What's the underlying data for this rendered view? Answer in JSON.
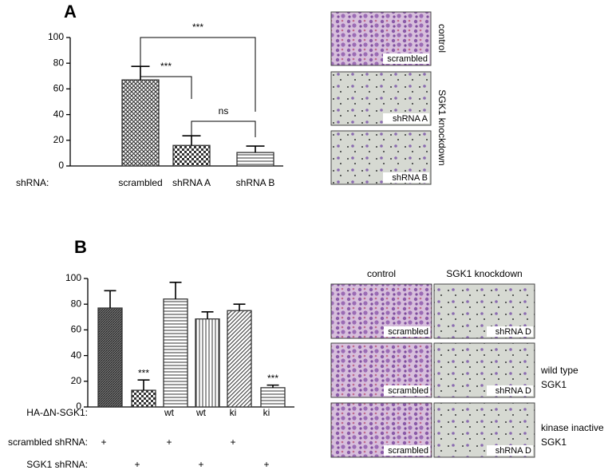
{
  "chart_data": [
    {
      "type": "bar",
      "panel": "A",
      "x_label": "shRNA:",
      "categories": [
        "scrambled",
        "shRNA A",
        "shRNA B"
      ],
      "values": [
        67,
        16,
        10.5
      ],
      "errors": [
        10.5,
        7.5,
        5
      ],
      "patterns": [
        "crosshatch",
        "checker",
        "horizontal"
      ],
      "color": "#333333",
      "ylim": [
        0,
        100
      ],
      "yticks": [
        0,
        20,
        40,
        60,
        80,
        100
      ],
      "significance": [
        "***",
        "***",
        "ns"
      ]
    },
    {
      "type": "bar",
      "panel": "B",
      "values": [
        77,
        13,
        84,
        68.5,
        75,
        15
      ],
      "errors": [
        13.5,
        8,
        13,
        5.5,
        5,
        2
      ],
      "patterns": [
        "diagonal-dense",
        "checker",
        "horizontal",
        "vertical",
        "diagonal",
        "horizontal"
      ],
      "color": "#333333",
      "annotations": [
        null,
        "***",
        null,
        null,
        null,
        "***"
      ],
      "ylim": [
        0,
        100
      ],
      "yticks": [
        0,
        20,
        40,
        60,
        80,
        100
      ],
      "condition_rows": [
        {
          "label": "HA-ΔN-SGK1:",
          "values": [
            null,
            null,
            "wt",
            "wt",
            "ki",
            "ki"
          ]
        },
        {
          "label": "scrambled shRNA:",
          "values": [
            "+",
            null,
            "+",
            null,
            "+",
            null
          ]
        },
        {
          "label": "SGK1 shRNA:",
          "values": [
            null,
            "+",
            null,
            "+",
            null,
            "+"
          ]
        }
      ]
    }
  ],
  "images": {
    "A": {
      "labels": [
        "scrambled",
        "shRNA A",
        "shRNA B"
      ],
      "side_labels": [
        "control",
        "SGK1 knockdown"
      ]
    },
    "B": {
      "column_headers": [
        "control",
        "SGK1 knockdown"
      ],
      "labels": [
        [
          "scrambled",
          "shRNA D"
        ],
        [
          "scrambled",
          "shRNA D"
        ],
        [
          "scrambled",
          "shRNA D"
        ]
      ],
      "side_labels": [
        [
          "wild type",
          "SGK1"
        ],
        [
          "kinase inactive",
          "SGK1"
        ]
      ]
    }
  }
}
